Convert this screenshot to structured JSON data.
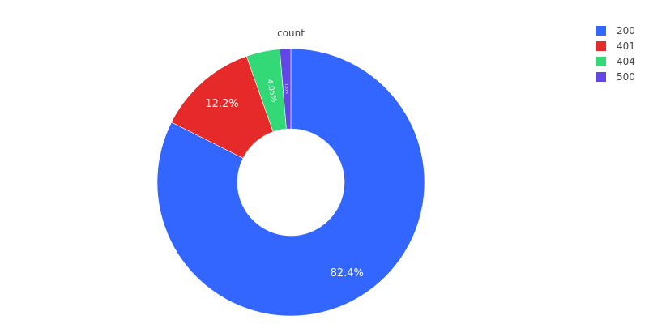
{
  "chart_data": {
    "type": "pie",
    "title": "count",
    "hole": true,
    "legend_position": "top-right",
    "categories": [
      "200",
      "401",
      "404",
      "500"
    ],
    "values": [
      82.4,
      12.2,
      4.05,
      1.33
    ],
    "labels": [
      "82.4%",
      "12.2%",
      "4.05%",
      "1.33%"
    ],
    "colors": [
      "#3366ff",
      "#e62a2a",
      "#33d977",
      "#6247e6"
    ]
  }
}
